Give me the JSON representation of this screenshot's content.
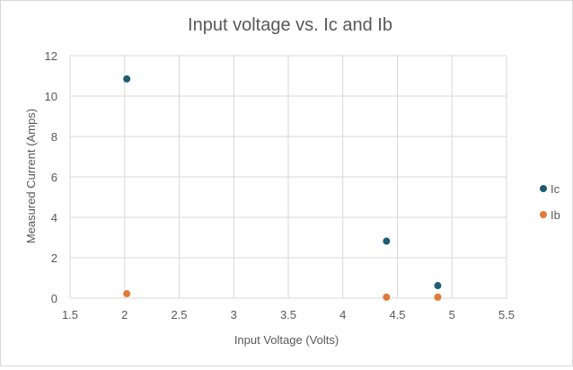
{
  "chart_data": {
    "type": "scatter",
    "title": "Input voltage vs. Ic and Ib",
    "xlabel": "Input Voltage (Volts)",
    "ylabel": "Measured Current (Amps)",
    "xlim": [
      1.5,
      5.5
    ],
    "ylim": [
      0,
      12
    ],
    "xticks": [
      "1.5",
      "2",
      "2.5",
      "3",
      "3.5",
      "4",
      "4.5",
      "5",
      "5.5"
    ],
    "yticks": [
      "0",
      "2",
      "4",
      "6",
      "8",
      "10",
      "12"
    ],
    "grid": true,
    "legend_position": "right",
    "series": [
      {
        "name": "Ic",
        "color": "#1f5b75",
        "points": [
          {
            "x": 2.02,
            "y": 10.85
          },
          {
            "x": 4.4,
            "y": 2.82
          },
          {
            "x": 4.87,
            "y": 0.62
          }
        ]
      },
      {
        "name": "Ib",
        "color": "#e07b39",
        "points": [
          {
            "x": 2.02,
            "y": 0.22
          },
          {
            "x": 4.4,
            "y": 0.05
          },
          {
            "x": 4.87,
            "y": 0.05
          }
        ]
      }
    ]
  }
}
